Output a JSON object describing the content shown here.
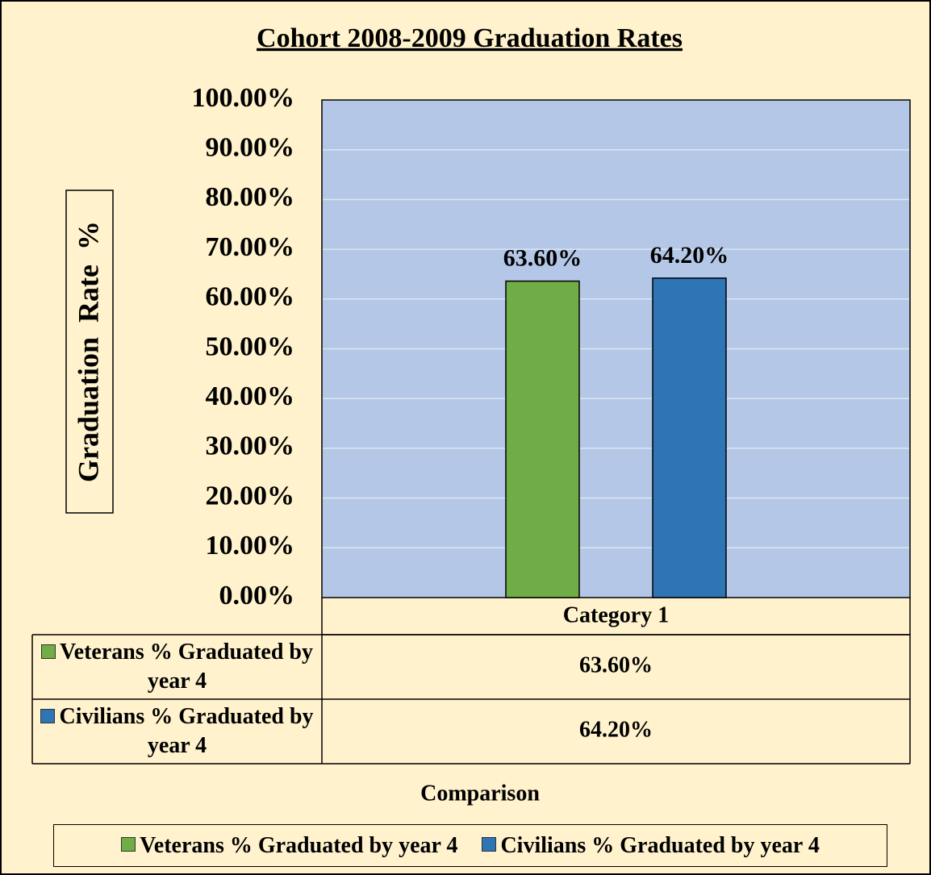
{
  "chart_data": {
    "type": "bar",
    "title": "Cohort 2008-2009 Graduation Rates",
    "y_axis_label": "Graduation  Rate  %",
    "x_axis_label": "Comparison",
    "categories": [
      "Category 1"
    ],
    "series": [
      {
        "name": "Veterans % Graduated by year 4",
        "color": "#70ad47",
        "values": [
          63.6
        ],
        "value_labels": [
          "63.60%"
        ]
      },
      {
        "name": "Civilians % Graduated by year 4",
        "color": "#2e75b6",
        "values": [
          64.2
        ],
        "value_labels": [
          "64.20%"
        ]
      }
    ],
    "ylim": [
      0,
      100
    ],
    "yticks": [
      {
        "value": 0,
        "label": "0.00%"
      },
      {
        "value": 10,
        "label": "10.00%"
      },
      {
        "value": 20,
        "label": "20.00%"
      },
      {
        "value": 30,
        "label": "30.00%"
      },
      {
        "value": 40,
        "label": "40.00%"
      },
      {
        "value": 50,
        "label": "50.00%"
      },
      {
        "value": 60,
        "label": "60.00%"
      },
      {
        "value": 70,
        "label": "70.00%"
      },
      {
        "value": 80,
        "label": "80.00%"
      },
      {
        "value": 90,
        "label": "90.00%"
      },
      {
        "value": 100,
        "label": "100.00%"
      }
    ],
    "grid": true,
    "plot_background": "#b4c7e7",
    "legend": "bottom",
    "data_table": true
  }
}
